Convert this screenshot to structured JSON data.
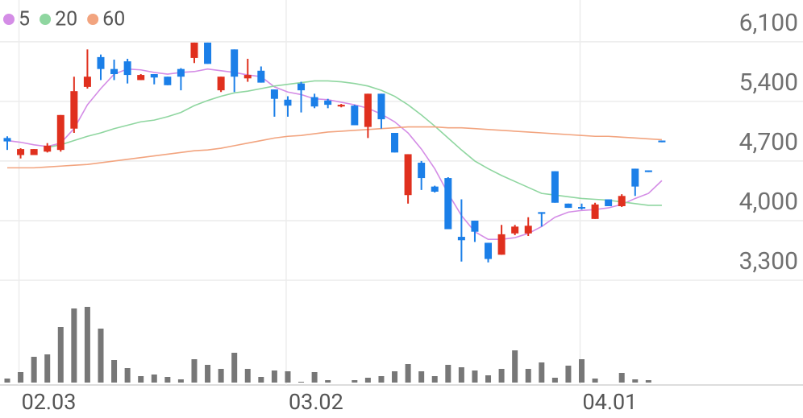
{
  "chart_data": {
    "type": "candlestick",
    "categories": [
      null,
      "02.03",
      null,
      null,
      null,
      null,
      null,
      null,
      null,
      null,
      null,
      null,
      null,
      null,
      null,
      null,
      null,
      null,
      null,
      null,
      null,
      "03.02",
      null,
      null,
      null,
      null,
      null,
      null,
      null,
      null,
      null,
      null,
      null,
      null,
      null,
      null,
      null,
      null,
      null,
      null,
      null,
      null,
      null,
      "04.01",
      null,
      null,
      null,
      null,
      null,
      null
    ],
    "open": [
      4970,
      4770,
      4770,
      4810,
      4830,
      5080,
      5570,
      5920,
      5780,
      5870,
      5650,
      5720,
      5690,
      5780,
      5910,
      6090,
      5530,
      6010,
      5670,
      5760,
      5540,
      5420,
      5610,
      5450,
      5410,
      5340,
      5350,
      5100,
      5490,
      5030,
      4300,
      4680,
      4400,
      4500,
      3810,
      4000,
      3740,
      3600,
      3850,
      3850,
      4100,
      4580,
      4200,
      4160,
      4020,
      4250,
      4170,
      4610,
      4590,
      4940
    ],
    "high": [
      4990,
      4850,
      4840,
      4910,
      5240,
      5690,
      6010,
      5950,
      5890,
      5900,
      5720,
      5720,
      5690,
      5790,
      6090,
      6090,
      5690,
      6010,
      5900,
      5810,
      5540,
      5460,
      5630,
      5490,
      5430,
      5370,
      5360,
      5490,
      5490,
      5030,
      4780,
      4700,
      4410,
      4510,
      4250,
      4000,
      3740,
      3950,
      3950,
      4040,
      4100,
      4580,
      4200,
      4200,
      4210,
      4250,
      4310,
      4610,
      4590,
      4940
    ],
    "low": [
      4830,
      4730,
      4770,
      4800,
      4810,
      5030,
      5550,
      5650,
      5650,
      5610,
      5650,
      5600,
      5590,
      5530,
      5850,
      5840,
      5510,
      5510,
      5630,
      5620,
      5220,
      5220,
      5270,
      5320,
      5320,
      5330,
      5120,
      4970,
      5080,
      4800,
      4200,
      4360,
      4330,
      3900,
      3520,
      3750,
      3510,
      3600,
      3830,
      3820,
      3930,
      4210,
      4150,
      4130,
      4020,
      4170,
      4160,
      4290,
      4570,
      4920
    ],
    "close": [
      4930,
      4840,
      4840,
      4880,
      5240,
      5520,
      5690,
      5780,
      5720,
      5710,
      5710,
      5680,
      5590,
      5690,
      6090,
      5840,
      5690,
      5690,
      5710,
      5620,
      5430,
      5350,
      5530,
      5340,
      5360,
      5360,
      5120,
      5490,
      5190,
      4800,
      4780,
      4500,
      4340,
      3900,
      3770,
      3870,
      3550,
      3840,
      3930,
      3940,
      4080,
      4210,
      4150,
      4150,
      4190,
      4170,
      4290,
      4400,
      4570,
      4920
    ],
    "up_color": "#e0301e",
    "down_color": "#1b7fe8",
    "series": [
      {
        "name": "5",
        "color": "#d48de6",
        "values": [
          4940,
          4920,
          4890,
          4870,
          4910,
          5080,
          5360,
          5550,
          5720,
          5780,
          5770,
          5740,
          5720,
          5740,
          5750,
          5780,
          5760,
          5740,
          5710,
          5690,
          5570,
          5510,
          5480,
          5430,
          5420,
          5390,
          5360,
          5320,
          5250,
          5160,
          5030,
          4840,
          4610,
          4320,
          4060,
          3870,
          3780,
          3780,
          3800,
          3850,
          3930,
          4040,
          4100,
          4120,
          4130,
          4150,
          4190,
          4260,
          4320,
          4470
        ]
      },
      {
        "name": "20",
        "color": "#8fd6a0",
        "values": [
          null,
          null,
          null,
          4860,
          4890,
          4940,
          4990,
          5030,
          5080,
          5120,
          5160,
          5180,
          5220,
          5270,
          5350,
          5410,
          5460,
          5500,
          5520,
          5550,
          5580,
          5600,
          5620,
          5640,
          5640,
          5630,
          5610,
          5580,
          5530,
          5460,
          5360,
          5240,
          5110,
          4970,
          4830,
          4700,
          4610,
          4530,
          4460,
          4390,
          4320,
          4300,
          4280,
          4260,
          4250,
          4240,
          4220,
          4200,
          4180,
          4180
        ]
      },
      {
        "name": "60",
        "color": "#f2a47f",
        "values": [
          4620,
          4620,
          4620,
          4630,
          4640,
          4650,
          4660,
          4680,
          4700,
          4720,
          4740,
          4760,
          4780,
          4800,
          4820,
          4830,
          4850,
          4880,
          4910,
          4940,
          4970,
          4990,
          5000,
          5020,
          5040,
          5050,
          5060,
          5070,
          5080,
          5090,
          5100,
          5100,
          5100,
          5090,
          5090,
          5080,
          5070,
          5060,
          5050,
          5040,
          5030,
          5020,
          5010,
          5000,
          4990,
          4990,
          4980,
          4970,
          4960,
          4950
        ]
      }
    ],
    "volume": {
      "color": "#777777",
      "ylim": [
        0,
        100
      ],
      "values": [
        5,
        13,
        32,
        35,
        69,
        92,
        94,
        67,
        28,
        18,
        8,
        10,
        7,
        4,
        29,
        22,
        17,
        37,
        17,
        7,
        15,
        14,
        1,
        13,
        3,
        0,
        3,
        6,
        8,
        14,
        23,
        14,
        8,
        22,
        19,
        15,
        9,
        17,
        40,
        17,
        25,
        6,
        21,
        29,
        5,
        0,
        12,
        4,
        3,
        0
      ]
    },
    "ylim": [
      3300,
      6590
    ],
    "yticks": [
      {
        "value": 3300,
        "label": "3,300"
      },
      {
        "value": 4000,
        "label": "4,000"
      },
      {
        "value": 4700,
        "label": "4,700"
      },
      {
        "value": 5400,
        "label": "5,400"
      },
      {
        "value": 6100,
        "label": "6,100"
      }
    ],
    "grid": true
  }
}
